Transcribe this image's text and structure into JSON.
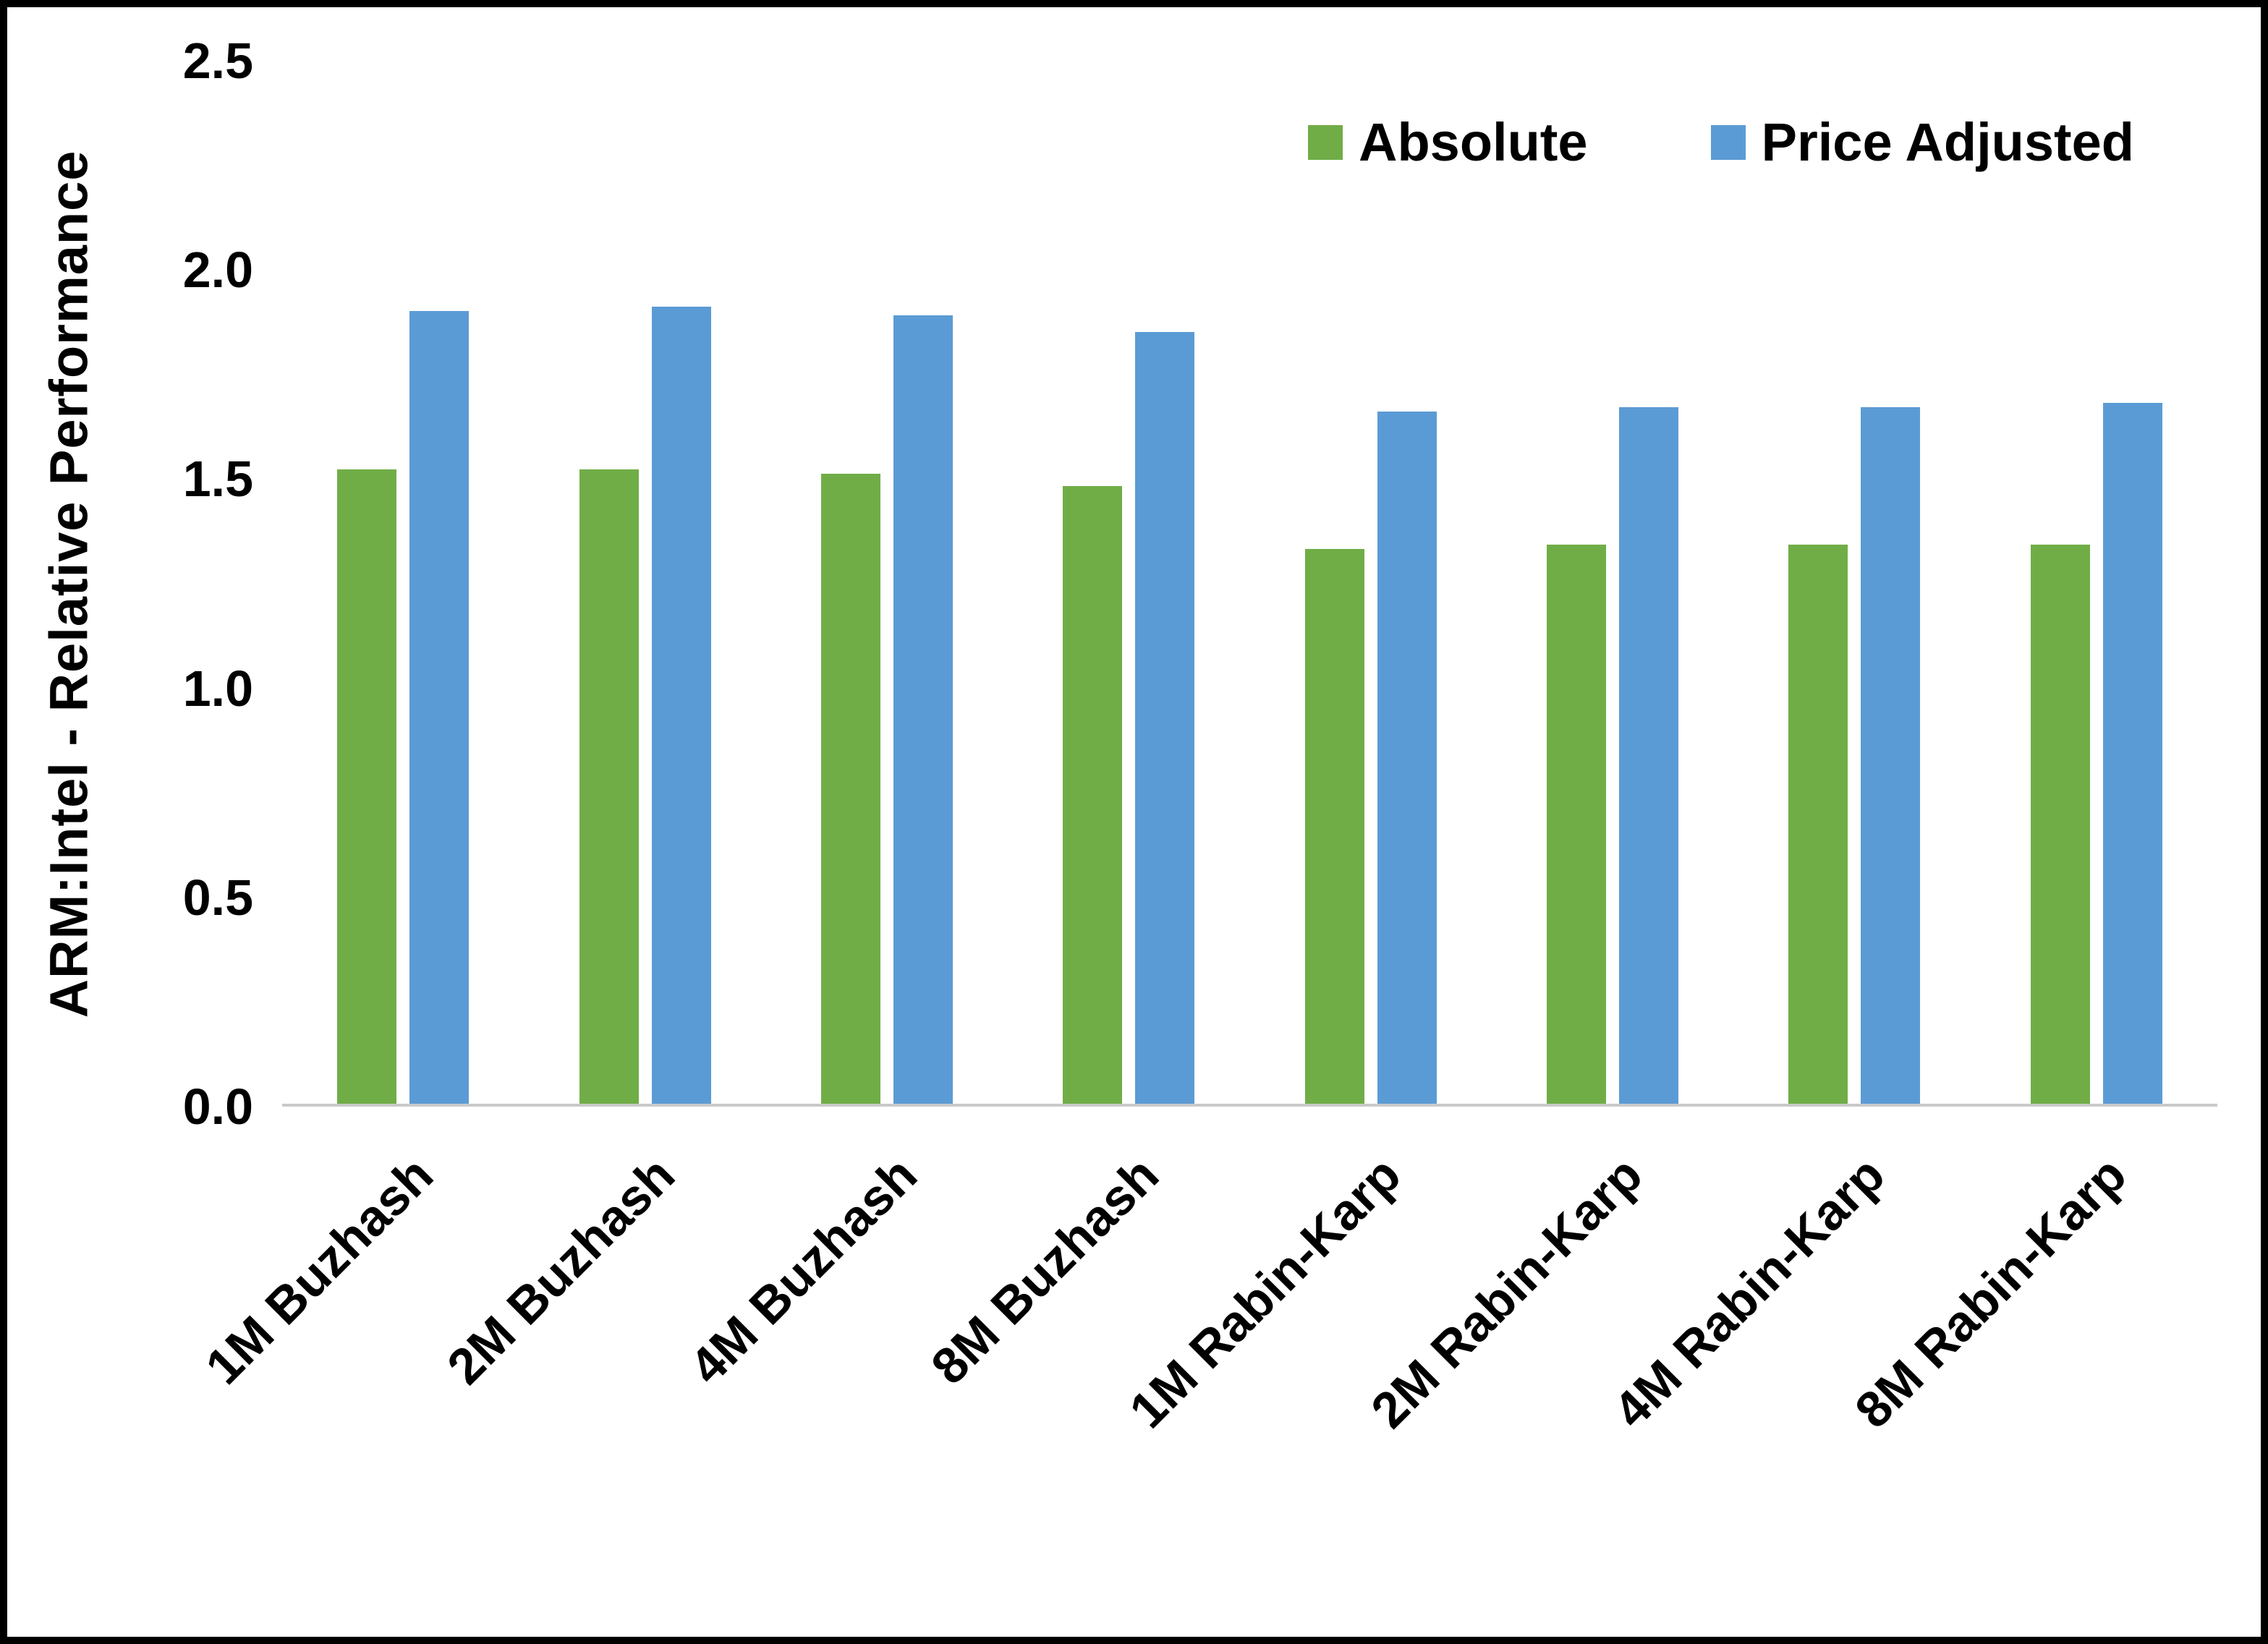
{
  "chart_data": {
    "type": "bar",
    "title": "",
    "categories": [
      "1M Buzhash",
      "2M Buzhash",
      "4M Buzhash",
      "8M Buzhash",
      "1M Rabin-Karp",
      "2M Rabin-Karp",
      "4M Rabin-Karp",
      "8M Rabin-Karp"
    ],
    "series": [
      {
        "name": "Absolute",
        "color": "#70AD47",
        "values": [
          1.52,
          1.52,
          1.51,
          1.48,
          1.33,
          1.34,
          1.34,
          1.34
        ]
      },
      {
        "name": "Price Adjusted",
        "color": "#5B9BD5",
        "values": [
          1.9,
          1.91,
          1.89,
          1.85,
          1.66,
          1.67,
          1.67,
          1.68
        ]
      }
    ],
    "xlabel": "",
    "ylabel": "ARM:Intel - Relative Performance",
    "ylim": [
      0,
      2.5
    ],
    "yticks": [
      0.0,
      0.5,
      1.0,
      1.5,
      2.0,
      2.5
    ],
    "ytick_labels": [
      "0.0",
      "0.5",
      "1.0",
      "1.5",
      "2.0",
      "2.5"
    ],
    "grid": false,
    "legend_position": "top-right",
    "baseline_color": "#c9c9c9"
  }
}
